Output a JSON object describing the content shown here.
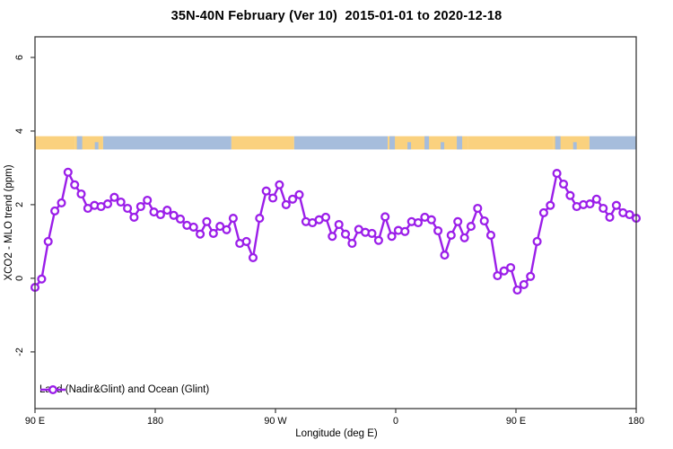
{
  "chart_data": {
    "type": "line",
    "title": "35N-40N February (Ver 10)  2015-01-01 to 2020-12-18",
    "xlabel": "Longitude (deg E)",
    "ylabel": "XCO2 - MLO trend (ppm)",
    "xlim_deg_east": [
      90,
      540
    ],
    "ylim": [
      -3.54,
      6.56
    ],
    "grid": false,
    "x_ticks": [
      {
        "deg": 90,
        "label": "90 E"
      },
      {
        "deg": 180,
        "label": "180"
      },
      {
        "deg": 270,
        "label": "90 W"
      },
      {
        "deg": 360,
        "label": "0"
      },
      {
        "deg": 450,
        "label": "90 E"
      },
      {
        "deg": 540,
        "label": "180"
      }
    ],
    "y_ticks": [
      {
        "value": -2,
        "label": "-2"
      },
      {
        "value": 0,
        "label": "0"
      },
      {
        "value": 2,
        "label": "2"
      },
      {
        "value": 4,
        "label": "4"
      },
      {
        "value": 6,
        "label": "6"
      }
    ],
    "series": [
      {
        "name": "Land (Nadir&Glint) and Ocean (Glint)",
        "color": "#9B1EE9",
        "marker": "open-circle",
        "x_start_deg": 90,
        "x_end_deg": 540,
        "values": [
          -0.25,
          -0.02,
          1.0,
          1.83,
          2.05,
          2.88,
          2.54,
          2.29,
          1.9,
          1.98,
          1.95,
          2.02,
          2.2,
          2.07,
          1.9,
          1.66,
          1.95,
          2.12,
          1.8,
          1.73,
          1.85,
          1.71,
          1.61,
          1.44,
          1.39,
          1.2,
          1.54,
          1.22,
          1.41,
          1.32,
          1.63,
          0.95,
          1.0,
          0.56,
          1.63,
          2.37,
          2.18,
          2.54,
          2.0,
          2.15,
          2.27,
          1.54,
          1.51,
          1.59,
          1.66,
          1.14,
          1.46,
          1.2,
          0.95,
          1.33,
          1.25,
          1.22,
          1.03,
          1.67,
          1.14,
          1.3,
          1.27,
          1.54,
          1.51,
          1.66,
          1.59,
          1.29,
          0.63,
          1.17,
          1.54,
          1.1,
          1.41,
          1.9,
          1.56,
          1.17,
          0.07,
          0.2,
          0.29,
          -0.32,
          -0.17,
          0.05,
          1.0,
          1.78,
          1.98,
          2.85,
          2.56,
          2.25,
          1.95,
          2.0,
          2.02,
          2.15,
          1.9,
          1.66,
          1.98,
          1.78,
          1.73,
          1.63
        ]
      }
    ],
    "surface_band": {
      "description": "land/ocean indicator strip",
      "y_value_range": [
        3.5,
        3.86
      ],
      "land_color": "#FAD17E",
      "ocean_color": "#A6BDDC",
      "segments": [
        {
          "from_deg": 90,
          "to_deg": 120,
          "type": "land"
        },
        {
          "from_deg": 120,
          "to_deg": 141,
          "type": "mixed"
        },
        {
          "from_deg": 141,
          "to_deg": 237,
          "type": "ocean"
        },
        {
          "from_deg": 237,
          "to_deg": 284,
          "type": "land"
        },
        {
          "from_deg": 284,
          "to_deg": 354,
          "type": "ocean"
        },
        {
          "from_deg": 354,
          "to_deg": 414,
          "type": "mixed"
        },
        {
          "from_deg": 414,
          "to_deg": 478,
          "type": "land"
        },
        {
          "from_deg": 478,
          "to_deg": 505,
          "type": "mixed"
        },
        {
          "from_deg": 505,
          "to_deg": 540,
          "type": "ocean"
        }
      ]
    },
    "legend": {
      "label": "Land (Nadir&Glint) and Ocean (Glint)",
      "position": "bottom-left"
    },
    "axis_color": "#3a3a3a"
  }
}
